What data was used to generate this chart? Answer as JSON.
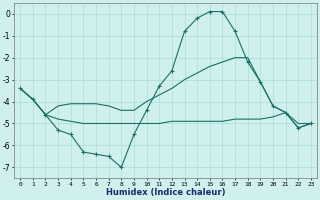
{
  "xlabel": "Humidex (Indice chaleur)",
  "bg_color": "#cff0ec",
  "grid_color": "#aaddda",
  "line_color": "#1a7068",
  "xlim_min": -0.5,
  "xlim_max": 23.5,
  "ylim_min": -7.5,
  "ylim_max": 0.5,
  "yticks": [
    0,
    -1,
    -2,
    -3,
    -4,
    -5,
    -6,
    -7
  ],
  "xticks": [
    0,
    1,
    2,
    3,
    4,
    5,
    6,
    7,
    8,
    9,
    10,
    11,
    12,
    13,
    14,
    15,
    16,
    17,
    18,
    19,
    20,
    21,
    22,
    23
  ],
  "curve_x": [
    0,
    1,
    2,
    3,
    4,
    5,
    6,
    7,
    8,
    9,
    10,
    11,
    12,
    13,
    14,
    15,
    16,
    17,
    18,
    19,
    20,
    21,
    22,
    23
  ],
  "curve1_y": [
    -3.4,
    -3.9,
    -4.6,
    -5.3,
    -5.5,
    -6.3,
    -6.4,
    -6.5,
    -7.0,
    -5.5,
    -4.4,
    -3.3,
    -2.6,
    -0.8,
    -0.2,
    0.1,
    0.1,
    -0.8,
    -2.2,
    -3.1,
    -4.2,
    -4.5,
    -5.2,
    -5.0
  ],
  "curve2_y": [
    -3.4,
    -3.9,
    -4.6,
    -4.2,
    -4.1,
    -4.1,
    -4.1,
    -4.2,
    -4.4,
    -4.4,
    -4.0,
    -3.7,
    -3.4,
    -3.0,
    -2.7,
    -2.4,
    -2.2,
    -2.0,
    -2.0,
    -3.1,
    -4.2,
    -4.5,
    -5.2,
    -5.0
  ],
  "curve3_y": [
    -3.4,
    -3.9,
    -4.6,
    -4.8,
    -4.9,
    -5.0,
    -5.0,
    -5.0,
    -5.0,
    -5.0,
    -5.0,
    -5.0,
    -4.9,
    -4.9,
    -4.9,
    -4.9,
    -4.9,
    -4.8,
    -4.8,
    -4.8,
    -4.7,
    -4.5,
    -5.0,
    -5.0
  ]
}
